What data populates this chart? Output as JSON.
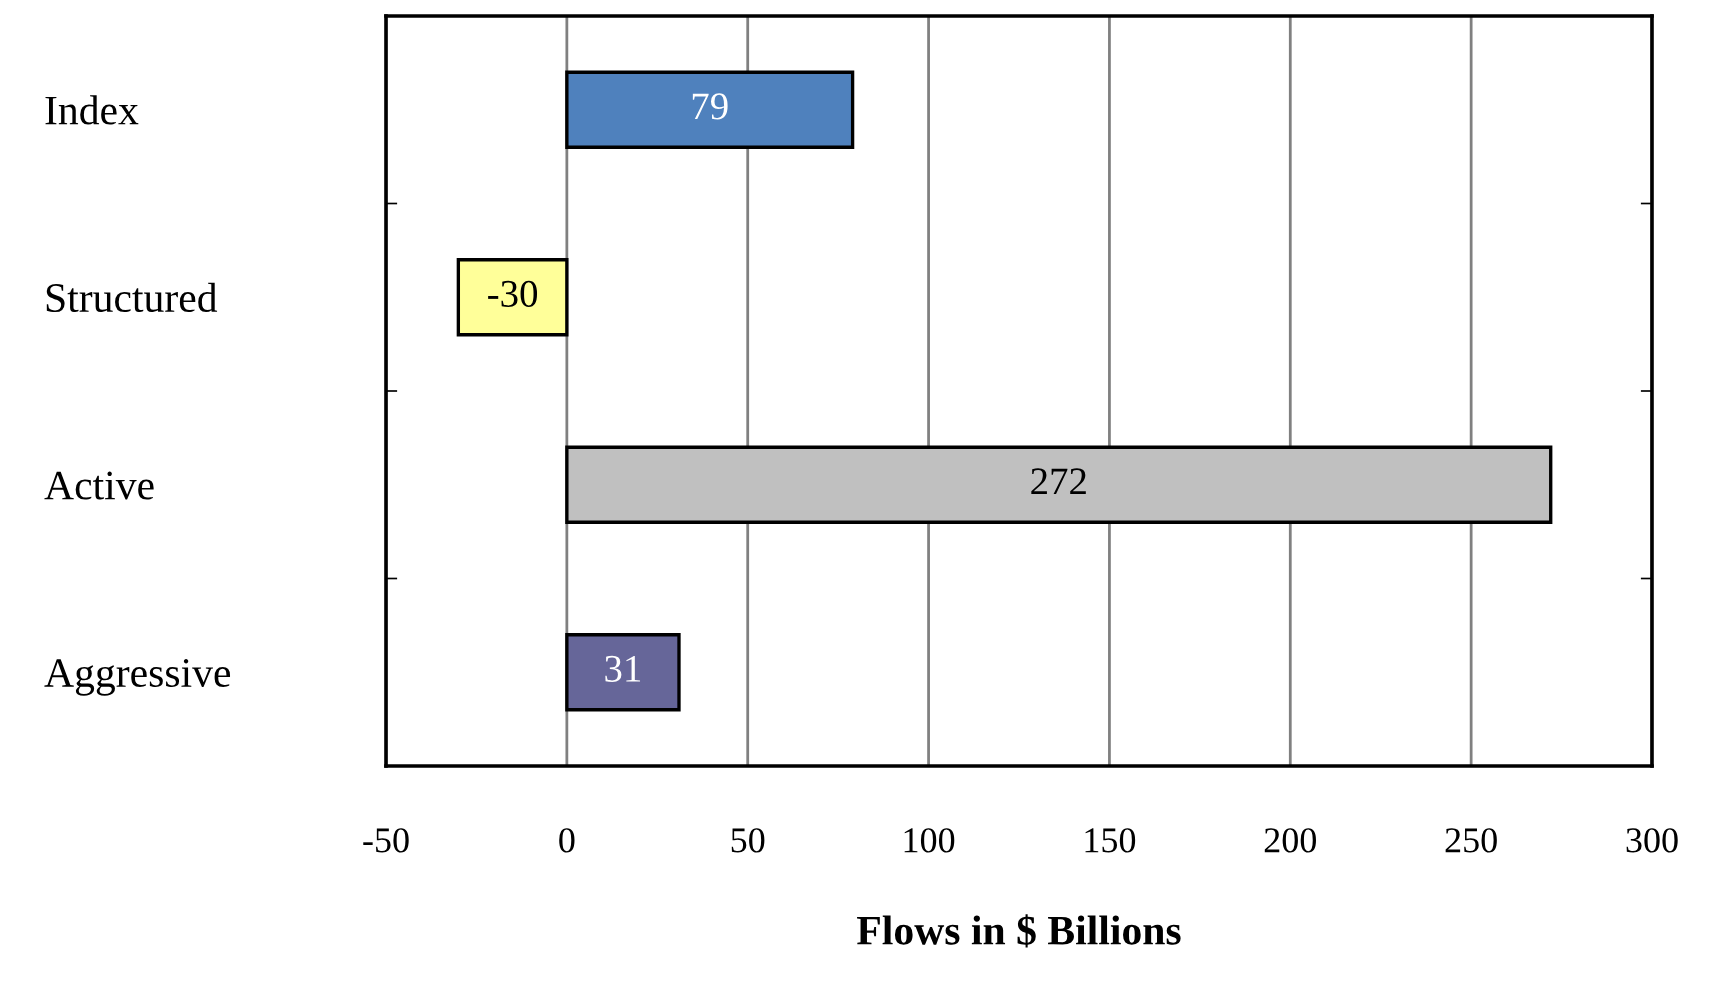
{
  "chart_data": {
    "type": "bar",
    "orientation": "horizontal",
    "categories": [
      "Index",
      "Structured",
      "Active",
      "Aggressive"
    ],
    "values": [
      79,
      -30,
      272,
      31
    ],
    "colors": [
      "#4f81bd",
      "#ffff99",
      "#c0c0c0",
      "#666699"
    ],
    "xlabel": "Flows in $ Billions",
    "xlim": [
      -50,
      300
    ],
    "xticks": [
      -50,
      0,
      50,
      100,
      150,
      200,
      250,
      300
    ],
    "grid": "x",
    "data_labels": true
  }
}
